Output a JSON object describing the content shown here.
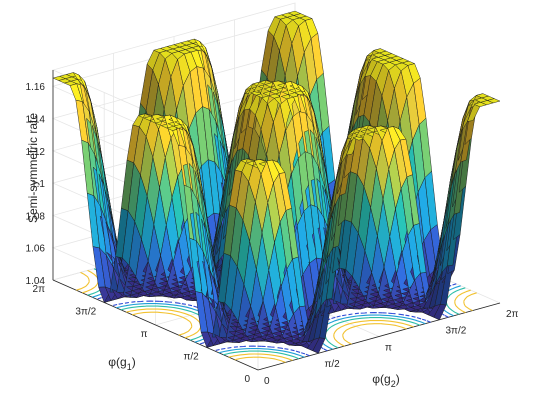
{
  "chart_data": {
    "type": "surface",
    "zlabel": "Semi-symmetric rate",
    "xlabel_main": "φ(g",
    "xlabel_sub": "2",
    "ylabel_main": "φ(g",
    "ylabel_sub": "1",
    "zlim": [
      1.04,
      1.17
    ],
    "z_ticks": [
      "1.04",
      "1.06",
      "1.08",
      "1.1",
      "1.12",
      "1.14",
      "1.16"
    ],
    "x_ticks": [
      "0",
      "π/2",
      "π",
      "3π/2",
      "2π"
    ],
    "y_ticks": [
      "0",
      "π/2",
      "π",
      "3π/2",
      "2π"
    ],
    "x_range": [
      0,
      6.283
    ],
    "y_range": [
      0,
      6.283
    ],
    "plateau_value": 1.165,
    "trough_value": 1.04,
    "plateau_centers": [
      {
        "x": 0,
        "y": 0
      },
      {
        "x": 3.1416,
        "y": 0
      },
      {
        "x": 6.2832,
        "y": 0
      },
      {
        "x": 0,
        "y": 3.1416
      },
      {
        "x": 3.1416,
        "y": 3.1416
      },
      {
        "x": 6.2832,
        "y": 3.1416
      },
      {
        "x": 0,
        "y": 6.2832
      },
      {
        "x": 3.1416,
        "y": 6.2832
      },
      {
        "x": 6.2832,
        "y": 6.2832
      }
    ],
    "contour_colors": [
      "#2f4bd6",
      "#1e9fd6",
      "#2fbfa8",
      "#f2c230"
    ],
    "colormap": [
      "#3b2e8c",
      "#2f63d1",
      "#1e9fd6",
      "#27b8a8",
      "#8fc452",
      "#f2c230",
      "#f9f51e"
    ],
    "grid": true
  }
}
